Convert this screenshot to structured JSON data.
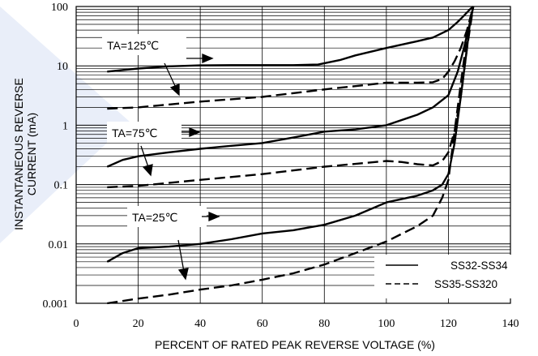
{
  "chart_data": {
    "type": "line",
    "xlabel": "PERCENT OF RATED PEAK REVERSE VOLTAGE (%)",
    "ylabel_lines": [
      "INSTANTANEOUS REVERSE",
      "CURRENT (mA)"
    ],
    "x_ticks": [
      "0",
      "20",
      "40",
      "60",
      "80",
      "100",
      "120",
      "140"
    ],
    "y_ticks": [
      "0.001",
      "0.01",
      "0.1",
      "1",
      "10",
      "100"
    ],
    "xlim": [
      0,
      140
    ],
    "ylim": [
      0.001,
      100
    ],
    "y_scale": "log",
    "grid": true,
    "legend_position": "bottom-right",
    "legend": [
      {
        "label": "SS32-SS34",
        "style": "solid"
      },
      {
        "label": "SS35-SS320",
        "style": "dashed"
      }
    ],
    "annotations": [
      {
        "text": "TA=125℃"
      },
      {
        "text": "TA=75℃"
      },
      {
        "text": "TA=25℃"
      }
    ],
    "series": [
      {
        "group": "SS32-SS34",
        "annotation": "TA=125℃",
        "style": "solid",
        "x": [
          10,
          20,
          30,
          40,
          50,
          60,
          70,
          78,
          85,
          90,
          100,
          110,
          115,
          120,
          123,
          125,
          127,
          128
        ],
        "y": [
          8,
          9,
          9.8,
          10.2,
          10.3,
          10.3,
          10.3,
          10.5,
          12.5,
          15,
          20,
          26,
          30,
          40,
          55,
          70,
          90,
          100
        ]
      },
      {
        "group": "SS35-SS320",
        "annotation": "TA=125℃",
        "style": "dashed",
        "x": [
          10,
          20,
          40,
          60,
          80,
          100,
          110,
          115,
          118,
          120,
          122,
          124,
          126,
          128
        ],
        "y": [
          1.9,
          2.0,
          2.5,
          3.0,
          4.0,
          5.2,
          5.2,
          5.3,
          6.0,
          8.0,
          12,
          20,
          40,
          100
        ]
      },
      {
        "group": "SS32-SS34",
        "annotation": "TA=75℃",
        "style": "solid",
        "x": [
          10,
          15,
          20,
          30,
          40,
          50,
          60,
          70,
          80,
          90,
          100,
          110,
          115,
          120,
          123,
          125,
          127,
          128
        ],
        "y": [
          0.2,
          0.26,
          0.3,
          0.35,
          0.4,
          0.45,
          0.5,
          0.62,
          0.78,
          0.85,
          1.0,
          1.5,
          2.0,
          3.2,
          8,
          20,
          55,
          100
        ]
      },
      {
        "group": "SS35-SS320",
        "annotation": "TA=75℃",
        "style": "dashed",
        "x": [
          10,
          20,
          40,
          60,
          80,
          100,
          105,
          110,
          115,
          118,
          120,
          122,
          124,
          126,
          128
        ],
        "y": [
          0.09,
          0.095,
          0.12,
          0.15,
          0.2,
          0.25,
          0.24,
          0.22,
          0.21,
          0.25,
          0.35,
          0.8,
          3,
          20,
          100
        ]
      },
      {
        "group": "SS32-SS34",
        "annotation": "TA=25℃",
        "style": "solid",
        "x": [
          10,
          15,
          20,
          30,
          40,
          50,
          60,
          70,
          80,
          90,
          100,
          110,
          115,
          118,
          120,
          122,
          124,
          126,
          127,
          128
        ],
        "y": [
          0.005,
          0.007,
          0.0085,
          0.009,
          0.01,
          0.012,
          0.015,
          0.017,
          0.021,
          0.03,
          0.05,
          0.065,
          0.08,
          0.1,
          0.15,
          0.5,
          3,
          20,
          55,
          100
        ]
      },
      {
        "group": "SS35-SS320",
        "annotation": "TA=25℃",
        "style": "dashed",
        "x": [
          10,
          20,
          30,
          40,
          50,
          60,
          70,
          80,
          90,
          100,
          110,
          115,
          118,
          120,
          122,
          124,
          126,
          128
        ],
        "y": [
          0.001,
          0.0012,
          0.0014,
          0.0017,
          0.002,
          0.0025,
          0.0032,
          0.0045,
          0.007,
          0.011,
          0.02,
          0.03,
          0.06,
          0.12,
          0.8,
          5,
          30,
          100
        ]
      }
    ]
  }
}
